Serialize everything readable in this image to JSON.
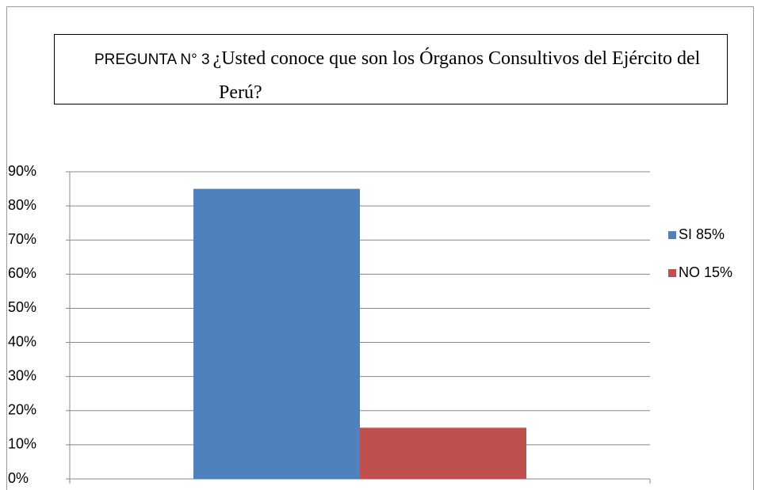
{
  "chart_data": {
    "type": "bar",
    "title_prefix": "PREGUNTA N° 3",
    "title": "¿Usted conoce que son los Órganos Consultivos del Ejército del Perú?",
    "categories": [
      null
    ],
    "series": [
      {
        "name": "SI 85%",
        "color": "#4f81bd",
        "values": [
          85
        ]
      },
      {
        "name": "NO 15%",
        "color": "#c0504d",
        "values": [
          15
        ]
      }
    ],
    "ylim": [
      0,
      90
    ],
    "yticks": [
      {
        "value": 0,
        "label": "0%"
      },
      {
        "value": 10,
        "label": "10%"
      },
      {
        "value": 20,
        "label": "20%"
      },
      {
        "value": 30,
        "label": "30%"
      },
      {
        "value": 40,
        "label": "40%"
      },
      {
        "value": 50,
        "label": "50%"
      },
      {
        "value": 60,
        "label": "60%"
      },
      {
        "value": 70,
        "label": "70%"
      },
      {
        "value": 80,
        "label": "80%"
      },
      {
        "value": 90,
        "label": "90%"
      }
    ],
    "grid": true,
    "legend": "right"
  }
}
